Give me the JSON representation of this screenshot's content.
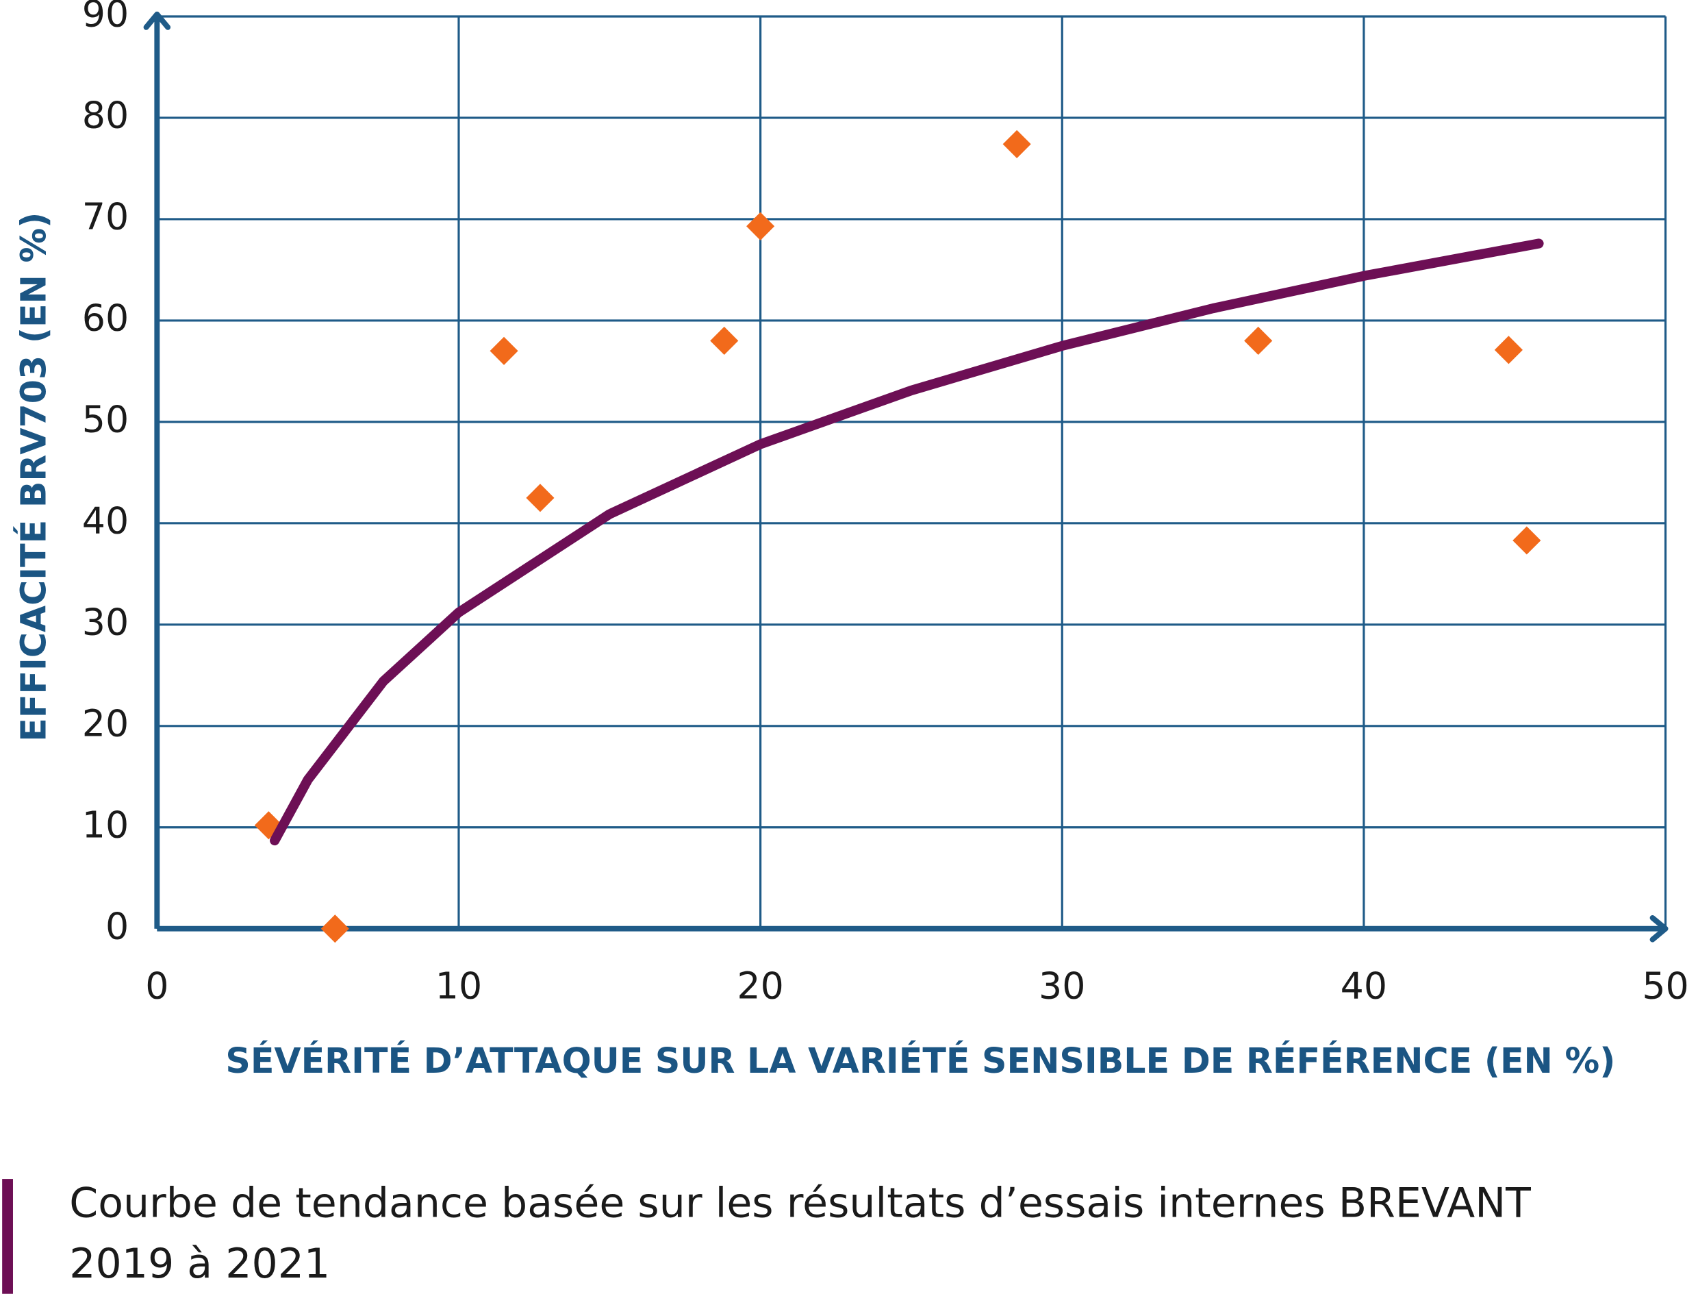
{
  "chart_data": {
    "type": "scatter",
    "x_label": "SÉVÉRITÉ D’ATTAQUE SUR LA VARIÉTÉ SENSIBLE DE RÉFÉRENCE (EN %)",
    "y_label": "EFFICACITÉ BRV703 (EN %)",
    "xlim": [
      0,
      50
    ],
    "xticks": [
      0,
      10,
      20,
      30,
      40,
      50
    ],
    "ylim": [
      0,
      90
    ],
    "yticks": [
      0,
      10,
      20,
      30,
      40,
      50,
      60,
      70,
      80,
      90
    ],
    "grid": true,
    "axis_color": "#1f5b88",
    "series": [
      {
        "type": "scatter",
        "color": "#f26a1b",
        "x": [
          3.7,
          5.9,
          11.5,
          12.7,
          18.8,
          20.0,
          28.5,
          36.5,
          44.8,
          45.4
        ],
        "values": [
          10.2,
          0,
          57.0,
          42.5,
          58.0,
          69.3,
          77.4,
          58.0,
          57.1,
          38.3
        ]
      },
      {
        "type": "line",
        "name": "Courbe de tendance basée sur les résultats d’essais internes BREVANT 2019 à 2021",
        "color": "#6d0f55",
        "x": [
          3.9,
          5,
          7.5,
          10,
          15,
          20,
          25,
          30,
          35,
          40,
          45.8
        ],
        "values": [
          8.7,
          14.7,
          24.4,
          31.2,
          40.9,
          47.8,
          53.1,
          57.5,
          61.2,
          64.4,
          67.6
        ]
      }
    ]
  }
}
